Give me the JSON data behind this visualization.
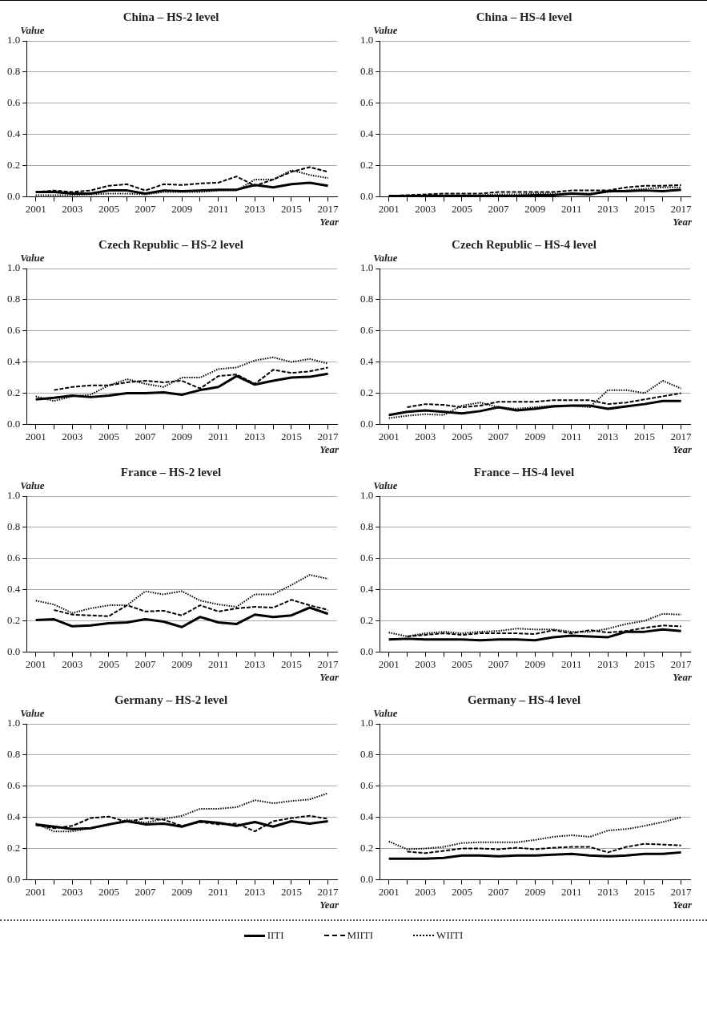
{
  "chart_data": [
    {
      "type": "line",
      "title": "China – HS-2 level",
      "xlabel": "Year",
      "ylabel": "Value",
      "categories": [
        "2001",
        null,
        "2003",
        null,
        "2005",
        null,
        "2007",
        null,
        "2009",
        null,
        "2011",
        null,
        "2013",
        null,
        "2015",
        null,
        "2017"
      ],
      "ylim": [
        0,
        1
      ],
      "yticks": [
        {
          "value": 0,
          "label": "0.0"
        },
        {
          "value": 0.2,
          "label": "0.2"
        },
        {
          "value": 0.4,
          "label": "0.4"
        },
        {
          "value": 0.6,
          "label": "0.6"
        },
        {
          "value": 0.8,
          "label": "0.8"
        },
        {
          "value": 1,
          "label": "1.0"
        }
      ],
      "grid": "y",
      "legend": "bottom",
      "marker": "none",
      "series": [
        {
          "name": "IITI",
          "color": "#000000",
          "line_style": "solid",
          "values": [
            0.03,
            0.03,
            0.02,
            0.02,
            0.04,
            0.04,
            0.02,
            0.04,
            0.035,
            0.04,
            0.045,
            0.045,
            0.075,
            0.06,
            0.08,
            0.09,
            0.07
          ]
        },
        {
          "name": "MIITI",
          "color": "#000000",
          "line_style": "dashed",
          "values": [
            0.03,
            0.04,
            0.03,
            0.04,
            0.07,
            0.08,
            0.04,
            0.08,
            0.075,
            0.085,
            0.09,
            0.13,
            0.07,
            0.11,
            0.16,
            0.19,
            0.16
          ]
        },
        {
          "name": "WIITI",
          "color": "#000000",
          "line_style": "dotted",
          "values": [
            0.01,
            0.01,
            0.01,
            0.015,
            0.02,
            0.02,
            0.015,
            0.03,
            0.03,
            0.03,
            0.04,
            0.04,
            0.11,
            0.11,
            0.17,
            0.14,
            0.12
          ]
        }
      ]
    },
    {
      "type": "line",
      "title": "China – HS-4 level",
      "xlabel": "Year",
      "ylabel": "Value",
      "categories": [
        "2001",
        null,
        "2003",
        null,
        "2005",
        null,
        "2007",
        null,
        "2009",
        null,
        "2011",
        null,
        "2013",
        null,
        "2015",
        null,
        "2017"
      ],
      "ylim": [
        0,
        1
      ],
      "yticks": [
        {
          "value": 0,
          "label": "0.0"
        },
        {
          "value": 0.2,
          "label": "0.2"
        },
        {
          "value": 0.4,
          "label": "0.4"
        },
        {
          "value": 0.6,
          "label": "0.6"
        },
        {
          "value": 0.8,
          "label": "0.8"
        },
        {
          "value": 1,
          "label": "1.0"
        }
      ],
      "grid": "y",
      "legend": false,
      "marker": "none",
      "series": [
        {
          "color": "#000000",
          "line_style": "solid",
          "values": [
            0.005,
            0.005,
            0.005,
            0.005,
            0.005,
            0.005,
            0.005,
            0.005,
            0.01,
            0.01,
            0.02,
            0.015,
            0.035,
            0.035,
            0.04,
            0.035,
            0.045
          ]
        },
        {
          "color": "#000000",
          "line_style": "dashed",
          "values": [
            0.005,
            0.01,
            0.015,
            0.02,
            0.02,
            0.02,
            0.03,
            0.03,
            0.03,
            0.03,
            0.04,
            0.04,
            0.04,
            0.06,
            0.07,
            0.07,
            0.075
          ]
        },
        {
          "color": "#000000",
          "line_style": "dotted",
          "values": [
            0,
            0.005,
            0.01,
            0.01,
            0.01,
            0.01,
            0.015,
            0.015,
            0.02,
            0.02,
            0.02,
            0.02,
            0.03,
            0.04,
            0.05,
            0.06,
            0.06
          ]
        }
      ]
    },
    {
      "type": "line",
      "title": "Czech Republic – HS-2 level",
      "xlabel": "Year",
      "ylabel": "Value",
      "categories": [
        "2001",
        null,
        "2003",
        null,
        "2005",
        null,
        "2007",
        null,
        "2009",
        null,
        "2011",
        null,
        "2013",
        null,
        "2015",
        null,
        "2017"
      ],
      "ylim": [
        0,
        1
      ],
      "yticks": [
        {
          "value": 0,
          "label": "0.0"
        },
        {
          "value": 0.2,
          "label": "0.2"
        },
        {
          "value": 0.4,
          "label": "0.4"
        },
        {
          "value": 0.6,
          "label": "0.6"
        },
        {
          "value": 0.8,
          "label": "0.8"
        },
        {
          "value": 1,
          "label": "1.0"
        }
      ],
      "grid": "y",
      "legend": false,
      "marker": "none",
      "series": [
        {
          "color": "#000000",
          "line_style": "solid",
          "values": [
            0.16,
            0.17,
            0.185,
            0.175,
            0.185,
            0.2,
            0.2,
            0.205,
            0.19,
            0.22,
            0.24,
            0.31,
            0.255,
            0.28,
            0.3,
            0.305,
            0.325
          ]
        },
        {
          "color": "#000000",
          "line_style": "dashed",
          "values": [
            null,
            0.22,
            0.24,
            0.25,
            0.25,
            0.27,
            0.28,
            0.27,
            0.28,
            0.23,
            0.31,
            0.32,
            0.26,
            0.35,
            0.33,
            0.34,
            0.365
          ]
        },
        {
          "color": "#000000",
          "line_style": "dotted",
          "values": [
            0.18,
            0.15,
            0.18,
            0.19,
            0.25,
            0.29,
            0.26,
            0.24,
            0.3,
            0.3,
            0.355,
            0.365,
            0.41,
            0.43,
            0.4,
            0.42,
            0.39
          ]
        }
      ]
    },
    {
      "type": "line",
      "title": "Czech Republic – HS-4 level",
      "xlabel": "Year",
      "ylabel": "Value",
      "categories": [
        "2001",
        null,
        "2003",
        null,
        "2005",
        null,
        "2007",
        null,
        "2009",
        null,
        "2011",
        null,
        "2013",
        null,
        "2015",
        null,
        "2017"
      ],
      "ylim": [
        0,
        1
      ],
      "yticks": [
        {
          "value": 0,
          "label": "0.0"
        },
        {
          "value": 0.2,
          "label": "0.2"
        },
        {
          "value": 0.4,
          "label": "0.4"
        },
        {
          "value": 0.6,
          "label": "0.6"
        },
        {
          "value": 0.8,
          "label": "0.8"
        },
        {
          "value": 1,
          "label": "1.0"
        }
      ],
      "grid": "y",
      "legend": false,
      "marker": "none",
      "series": [
        {
          "color": "#000000",
          "line_style": "solid",
          "values": [
            0.06,
            0.08,
            0.09,
            0.08,
            0.07,
            0.085,
            0.11,
            0.09,
            0.1,
            0.115,
            0.12,
            0.12,
            0.1,
            0.115,
            0.13,
            0.15,
            0.15
          ]
        },
        {
          "color": "#000000",
          "line_style": "dashed",
          "values": [
            null,
            0.11,
            0.13,
            0.125,
            0.11,
            0.12,
            0.145,
            0.145,
            0.145,
            0.155,
            0.155,
            0.155,
            0.13,
            0.14,
            0.16,
            0.18,
            0.2
          ]
        },
        {
          "color": "#000000",
          "line_style": "dotted",
          "values": [
            0.04,
            0.055,
            0.065,
            0.06,
            0.12,
            0.14,
            0.11,
            0.1,
            0.11,
            0.12,
            0.12,
            0.11,
            0.22,
            0.22,
            0.2,
            0.28,
            0.23
          ]
        }
      ]
    },
    {
      "type": "line",
      "title": "France – HS-2 level",
      "xlabel": "Year",
      "ylabel": "Value",
      "categories": [
        "2001",
        null,
        "2003",
        null,
        "2005",
        null,
        "2007",
        null,
        "2009",
        null,
        "2011",
        null,
        "2013",
        null,
        "2015",
        null,
        "2017"
      ],
      "ylim": [
        0,
        1
      ],
      "yticks": [
        {
          "value": 0,
          "label": "0.0"
        },
        {
          "value": 0.2,
          "label": "0.2"
        },
        {
          "value": 0.4,
          "label": "0.4"
        },
        {
          "value": 0.6,
          "label": "0.6"
        },
        {
          "value": 0.8,
          "label": "0.8"
        },
        {
          "value": 1,
          "label": "1.0"
        }
      ],
      "grid": "y",
      "legend": false,
      "marker": "none",
      "series": [
        {
          "color": "#000000",
          "line_style": "solid",
          "values": [
            0.205,
            0.21,
            0.165,
            0.17,
            0.185,
            0.19,
            0.21,
            0.195,
            0.16,
            0.225,
            0.19,
            0.18,
            0.24,
            0.225,
            0.235,
            0.285,
            0.245
          ]
        },
        {
          "color": "#000000",
          "line_style": "dashed",
          "values": [
            null,
            0.27,
            0.24,
            0.235,
            0.23,
            0.3,
            0.26,
            0.265,
            0.235,
            0.3,
            0.26,
            0.28,
            0.29,
            0.285,
            0.335,
            0.3,
            0.27
          ]
        },
        {
          "color": "#000000",
          "line_style": "dotted",
          "values": [
            0.33,
            0.305,
            0.25,
            0.28,
            0.3,
            0.3,
            0.39,
            0.37,
            0.39,
            0.33,
            0.305,
            0.29,
            0.37,
            0.37,
            0.43,
            0.495,
            0.47
          ]
        }
      ]
    },
    {
      "type": "line",
      "title": "France – HS-4 level",
      "xlabel": "Year",
      "ylabel": "Value",
      "categories": [
        "2001",
        null,
        "2003",
        null,
        "2005",
        null,
        "2007",
        null,
        "2009",
        null,
        "2011",
        null,
        "2013",
        null,
        "2015",
        null,
        "2017"
      ],
      "ylim": [
        0,
        1
      ],
      "yticks": [
        {
          "value": 0,
          "label": "0.0"
        },
        {
          "value": 0.2,
          "label": "0.2"
        },
        {
          "value": 0.4,
          "label": "0.4"
        },
        {
          "value": 0.6,
          "label": "0.6"
        },
        {
          "value": 0.8,
          "label": "0.8"
        },
        {
          "value": 1,
          "label": "1.0"
        }
      ],
      "grid": "y",
      "legend": false,
      "marker": "none",
      "series": [
        {
          "color": "#000000",
          "line_style": "solid",
          "values": [
            0.08,
            0.085,
            0.08,
            0.08,
            0.08,
            0.075,
            0.08,
            0.08,
            0.075,
            0.095,
            0.105,
            0.1,
            0.095,
            0.13,
            0.13,
            0.145,
            0.135
          ]
        },
        {
          "color": "#000000",
          "line_style": "dashed",
          "values": [
            null,
            0.1,
            0.11,
            0.12,
            0.11,
            0.12,
            0.12,
            0.12,
            0.115,
            0.14,
            0.12,
            0.14,
            0.125,
            0.135,
            0.155,
            0.17,
            0.165
          ]
        },
        {
          "color": "#000000",
          "line_style": "dotted",
          "values": [
            0.125,
            0.1,
            0.12,
            0.13,
            0.12,
            0.13,
            0.135,
            0.15,
            0.145,
            0.145,
            0.13,
            0.13,
            0.15,
            0.18,
            0.2,
            0.245,
            0.24
          ]
        }
      ]
    },
    {
      "type": "line",
      "title": "Germany – HS-2 level",
      "xlabel": "Year",
      "ylabel": "Value",
      "categories": [
        "2001",
        null,
        "2003",
        null,
        "2005",
        null,
        "2007",
        null,
        "2009",
        null,
        "2011",
        null,
        "2013",
        null,
        "2015",
        null,
        "2017"
      ],
      "ylim": [
        0,
        1
      ],
      "yticks": [
        {
          "value": 0,
          "label": "0.0"
        },
        {
          "value": 0.2,
          "label": "0.2"
        },
        {
          "value": 0.4,
          "label": "0.4"
        },
        {
          "value": 0.6,
          "label": "0.6"
        },
        {
          "value": 0.8,
          "label": "0.8"
        },
        {
          "value": 1,
          "label": "1.0"
        }
      ],
      "grid": "y",
      "legend": false,
      "marker": "none",
      "series": [
        {
          "color": "#000000",
          "line_style": "solid",
          "values": [
            0.355,
            0.34,
            0.325,
            0.33,
            0.355,
            0.375,
            0.355,
            0.36,
            0.34,
            0.375,
            0.365,
            0.345,
            0.37,
            0.34,
            0.375,
            0.36,
            0.375
          ]
        },
        {
          "color": "#000000",
          "line_style": "dashed",
          "values": [
            0.35,
            0.33,
            0.345,
            0.395,
            0.405,
            0.37,
            0.395,
            0.385,
            0.345,
            0.37,
            0.355,
            0.36,
            0.31,
            0.375,
            0.395,
            0.41,
            0.39
          ]
        },
        {
          "color": "#000000",
          "line_style": "dotted",
          "values": [
            0.36,
            0.31,
            0.31,
            0.33,
            0.35,
            0.385,
            0.365,
            0.39,
            0.41,
            0.455,
            0.455,
            0.465,
            0.51,
            0.49,
            0.505,
            0.515,
            0.555
          ]
        }
      ]
    },
    {
      "type": "line",
      "title": "Germany – HS-4 level",
      "xlabel": "Year",
      "ylabel": "Value",
      "categories": [
        "2001",
        null,
        "2003",
        null,
        "2005",
        null,
        "2007",
        null,
        "2009",
        null,
        "2011",
        null,
        "2013",
        null,
        "2015",
        null,
        "2017"
      ],
      "ylim": [
        0,
        1
      ],
      "yticks": [
        {
          "value": 0,
          "label": "0.0"
        },
        {
          "value": 0.2,
          "label": "0.2"
        },
        {
          "value": 0.4,
          "label": "0.4"
        },
        {
          "value": 0.6,
          "label": "0.6"
        },
        {
          "value": 0.8,
          "label": "0.8"
        },
        {
          "value": 1,
          "label": "1.0"
        }
      ],
      "grid": "y",
      "legend": false,
      "marker": "none",
      "series": [
        {
          "color": "#000000",
          "line_style": "solid",
          "values": [
            0.135,
            0.135,
            0.135,
            0.14,
            0.155,
            0.155,
            0.15,
            0.155,
            0.155,
            0.16,
            0.165,
            0.155,
            0.15,
            0.155,
            0.165,
            0.165,
            0.175
          ]
        },
        {
          "color": "#000000",
          "line_style": "dashed",
          "values": [
            null,
            0.18,
            0.17,
            0.185,
            0.2,
            0.2,
            0.195,
            0.205,
            0.195,
            0.205,
            0.21,
            0.21,
            0.175,
            0.21,
            0.23,
            0.225,
            0.22
          ]
        },
        {
          "color": "#000000",
          "line_style": "dotted",
          "values": [
            0.245,
            0.195,
            0.2,
            0.21,
            0.235,
            0.24,
            0.24,
            0.24,
            0.255,
            0.275,
            0.285,
            0.275,
            0.315,
            0.325,
            0.345,
            0.37,
            0.4
          ]
        }
      ]
    }
  ]
}
